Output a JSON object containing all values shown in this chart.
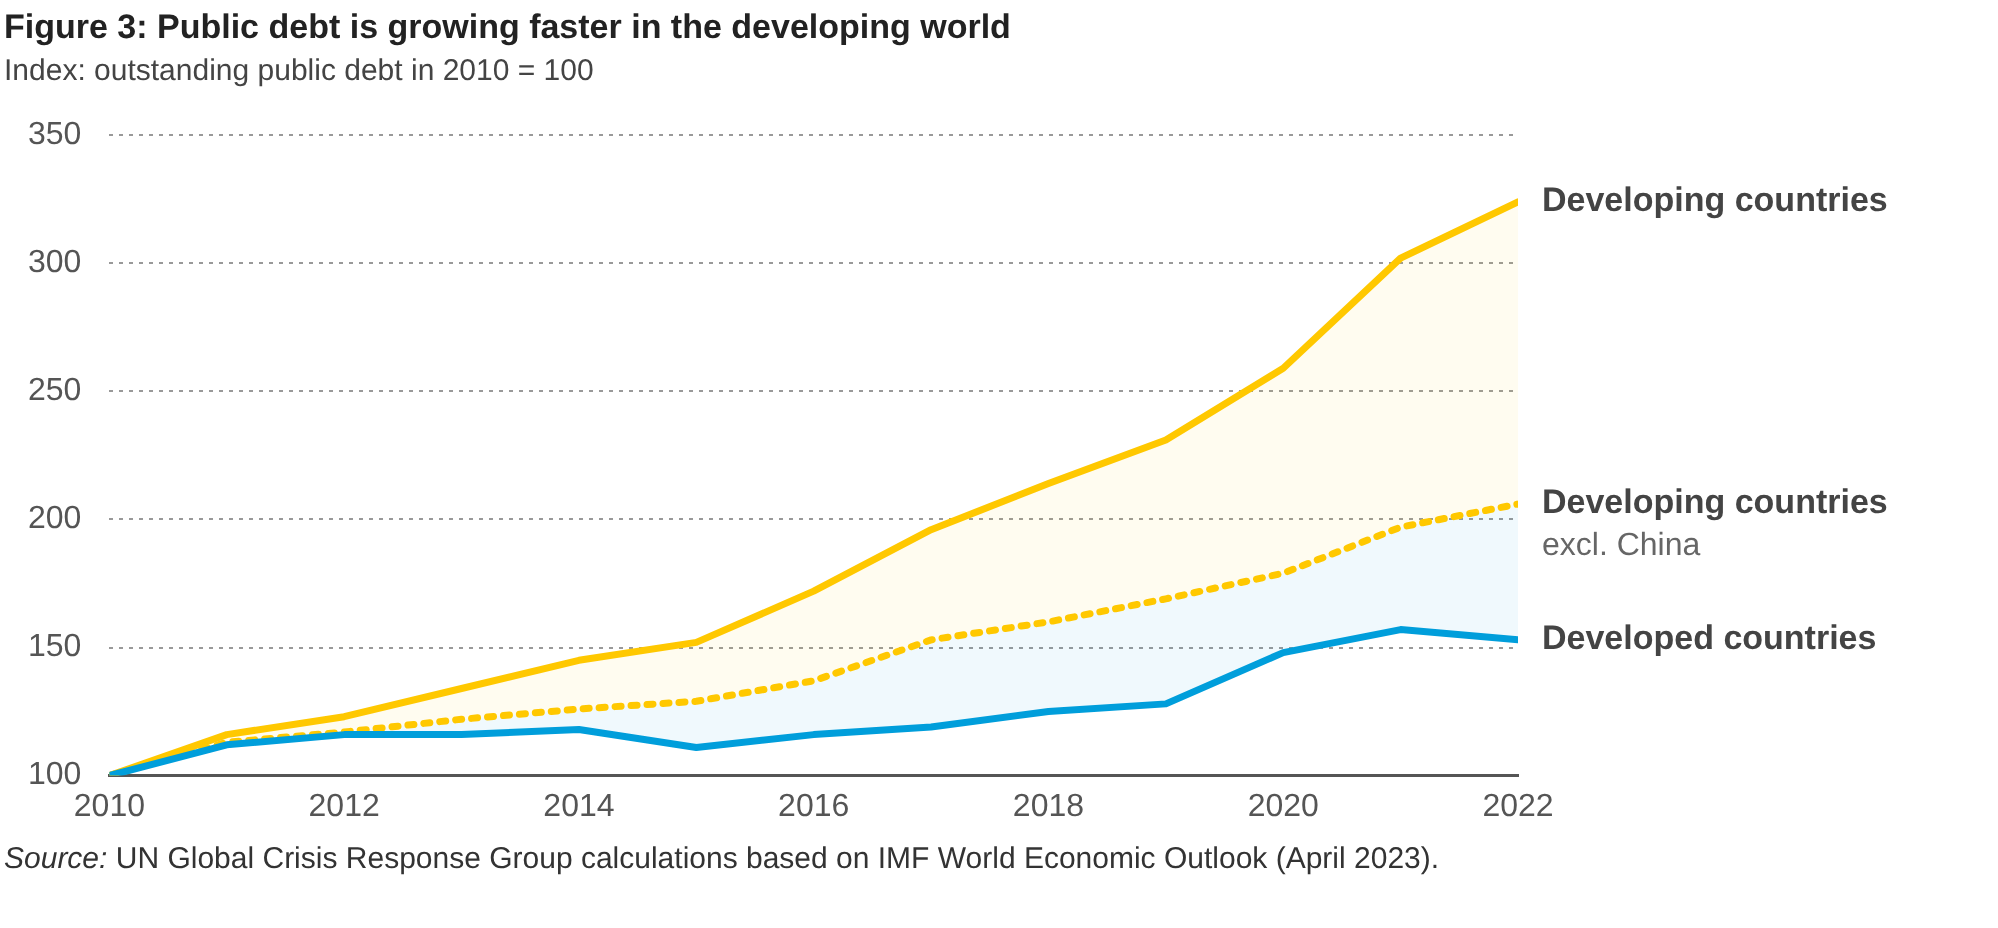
{
  "chart_data": {
    "type": "line",
    "title": "Figure 3: Public debt is growing faster in the developing world",
    "subtitle": "Index: outstanding public debt in 2010 = 100",
    "x": [
      2010,
      2011,
      2012,
      2013,
      2014,
      2015,
      2016,
      2017,
      2018,
      2019,
      2020,
      2021,
      2022
    ],
    "series": [
      {
        "name": "Developing countries",
        "color": "#ffc800",
        "line_style": "solid",
        "values": [
          100,
          116,
          123,
          134,
          145,
          152,
          172,
          196,
          214,
          231,
          259,
          302,
          324
        ],
        "lower": [
          100,
          113,
          117,
          122,
          126,
          129,
          137,
          153,
          160,
          169,
          179,
          197,
          206
        ],
        "upper": [
          100,
          116,
          123,
          134,
          145,
          152,
          172,
          196,
          214,
          231,
          259,
          302,
          324
        ]
      },
      {
        "name": "Developing countries excl. China",
        "color": "#ffc800",
        "line_style": "dotted",
        "values": [
          100,
          113,
          117,
          122,
          126,
          129,
          137,
          153,
          160,
          169,
          179,
          197,
          206
        ]
      },
      {
        "name": "Developed countries",
        "color": "#009edb",
        "line_style": "solid",
        "values": [
          100,
          112,
          116,
          116,
          118,
          111,
          116,
          119,
          125,
          128,
          148,
          157,
          153
        ],
        "lower": [
          100,
          112,
          116,
          116,
          118,
          111,
          116,
          119,
          125,
          128,
          148,
          157,
          153
        ],
        "upper": [
          100,
          113,
          117,
          122,
          126,
          129,
          137,
          153,
          160,
          169,
          179,
          197,
          206
        ]
      }
    ],
    "xlim": [
      2010,
      2022
    ],
    "xticks": [
      2010,
      2012,
      2014,
      2016,
      2018,
      2020,
      2022
    ],
    "ylim": [
      100,
      350
    ],
    "yticks": [
      100,
      150,
      200,
      250,
      300,
      350
    ],
    "grid": "y",
    "legend": false,
    "marker": "none",
    "annotations": [
      "Source: UN Global Crisis Response Group calculations based on IMF World Economic Outlook (April 2023)."
    ]
  }
}
